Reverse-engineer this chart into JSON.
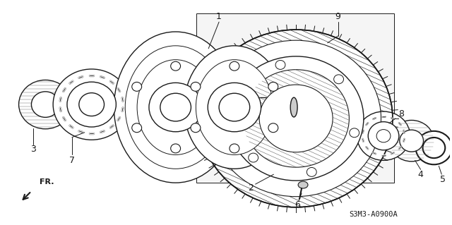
{
  "background_color": "#ffffff",
  "line_color": "#1a1a1a",
  "footer_code": "S3M3-A0900A",
  "fig_width": 6.4,
  "fig_height": 3.19,
  "dpi": 100
}
